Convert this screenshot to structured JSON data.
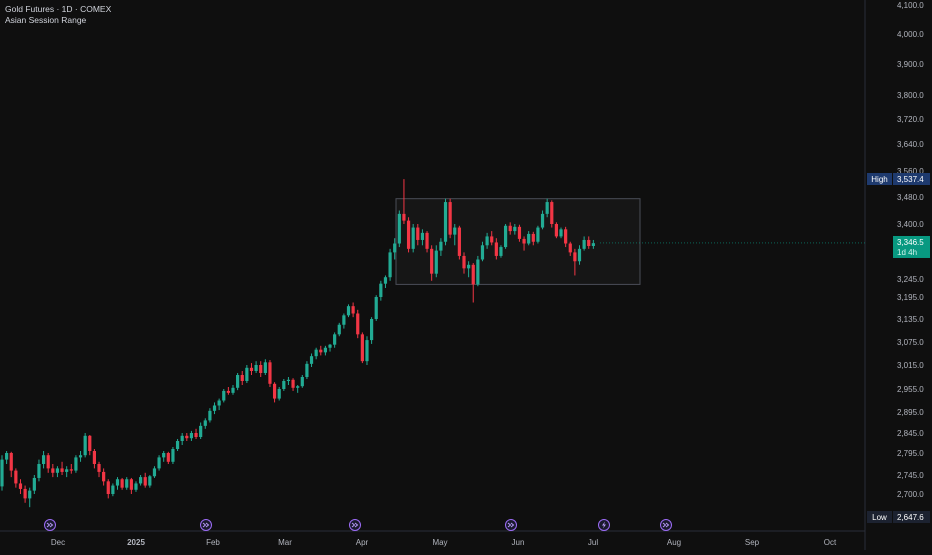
{
  "header": {
    "title": "Gold Futures · 1D · COMEX",
    "subtitle": "Asian Session Range"
  },
  "chart_data": {
    "type": "candlestick",
    "title": "Gold Futures · 1D · COMEX",
    "annotation": "Asian Session Range",
    "x_tick_labels": [
      "Dec",
      "2025",
      "Feb",
      "Mar",
      "Apr",
      "May",
      "Jun",
      "Jul",
      "Aug",
      "Sep",
      "Oct"
    ],
    "y_tick_labels": [
      "4,100.0",
      "4,000.0",
      "3,900.0",
      "3,800.0",
      "3,720.0",
      "3,640.0",
      "3,560.0",
      "3,480.0",
      "3,400.0",
      "3,245.0",
      "3,195.0",
      "3,135.0",
      "3,075.0",
      "3,015.0",
      "2,955.0",
      "2,895.0",
      "2,845.0",
      "2,795.0",
      "2,745.0",
      "2,700.0",
      "2,647.6"
    ],
    "ylim": [
      2600,
      4120
    ],
    "range_box": {
      "label": "Asian Session Range",
      "y_low": 3230,
      "y_high": 3475,
      "x_start": "2025-04-09",
      "x_end": "2025-07-07"
    },
    "markers": {
      "high": {
        "label": "High",
        "value": "3,537.4"
      },
      "low": {
        "label": "Low",
        "value": "2,647.6"
      },
      "last": {
        "value": "3,346.5",
        "countdown": "1d 4h"
      }
    },
    "event_icons": [
      "event-next-icon",
      "event-next-icon",
      "event-next-icon",
      "event-next-icon",
      "lightning-icon",
      "event-next-icon"
    ],
    "series": [
      {
        "values": [
          [
            2718,
            2790,
            2708,
            2780
          ],
          [
            2780,
            2800,
            2770,
            2795
          ],
          [
            2795,
            2798,
            2740,
            2755
          ],
          [
            2755,
            2760,
            2715,
            2725
          ],
          [
            2725,
            2735,
            2700,
            2712
          ],
          [
            2712,
            2720,
            2680,
            2690
          ],
          [
            2690,
            2715,
            2670,
            2708
          ],
          [
            2708,
            2745,
            2700,
            2738
          ],
          [
            2738,
            2780,
            2730,
            2770
          ],
          [
            2770,
            2800,
            2760,
            2790
          ],
          [
            2790,
            2795,
            2750,
            2760
          ],
          [
            2760,
            2770,
            2740,
            2750
          ],
          [
            2750,
            2765,
            2740,
            2760
          ],
          [
            2760,
            2775,
            2745,
            2752
          ],
          [
            2752,
            2765,
            2740,
            2758
          ],
          [
            2758,
            2770,
            2748,
            2755
          ],
          [
            2755,
            2790,
            2750,
            2785
          ],
          [
            2785,
            2800,
            2775,
            2790
          ],
          [
            2790,
            2845,
            2785,
            2838
          ],
          [
            2838,
            2840,
            2790,
            2800
          ],
          [
            2800,
            2805,
            2760,
            2770
          ],
          [
            2770,
            2775,
            2740,
            2752
          ],
          [
            2752,
            2760,
            2720,
            2730
          ],
          [
            2730,
            2735,
            2690,
            2700
          ],
          [
            2700,
            2725,
            2695,
            2720
          ],
          [
            2720,
            2740,
            2710,
            2735
          ],
          [
            2735,
            2738,
            2710,
            2715
          ],
          [
            2715,
            2740,
            2710,
            2735
          ],
          [
            2735,
            2738,
            2700,
            2710
          ],
          [
            2710,
            2730,
            2705,
            2725
          ],
          [
            2725,
            2745,
            2720,
            2740
          ],
          [
            2740,
            2750,
            2715,
            2720
          ],
          [
            2720,
            2745,
            2715,
            2742
          ],
          [
            2742,
            2765,
            2738,
            2760
          ],
          [
            2760,
            2790,
            2755,
            2785
          ],
          [
            2785,
            2800,
            2775,
            2795
          ],
          [
            2795,
            2798,
            2770,
            2775
          ],
          [
            2775,
            2810,
            2770,
            2805
          ],
          [
            2805,
            2830,
            2800,
            2825
          ],
          [
            2825,
            2845,
            2815,
            2838
          ],
          [
            2838,
            2845,
            2825,
            2832
          ],
          [
            2832,
            2850,
            2825,
            2845
          ],
          [
            2845,
            2855,
            2830,
            2835
          ],
          [
            2835,
            2870,
            2830,
            2862
          ],
          [
            2862,
            2880,
            2855,
            2875
          ],
          [
            2875,
            2905,
            2870,
            2898
          ],
          [
            2898,
            2920,
            2890,
            2912
          ],
          [
            2912,
            2930,
            2900,
            2925
          ],
          [
            2925,
            2955,
            2920,
            2950
          ],
          [
            2950,
            2960,
            2940,
            2945
          ],
          [
            2945,
            2965,
            2940,
            2958
          ],
          [
            2958,
            2995,
            2952,
            2990
          ],
          [
            2990,
            3000,
            2965,
            2975
          ],
          [
            2975,
            3015,
            2970,
            3008
          ],
          [
            3008,
            3020,
            2990,
            3000
          ],
          [
            3000,
            3025,
            2995,
            3015
          ],
          [
            3015,
            3025,
            2985,
            2995
          ],
          [
            2995,
            3030,
            2990,
            3022
          ],
          [
            3022,
            3028,
            2960,
            2968
          ],
          [
            2968,
            2972,
            2920,
            2930
          ],
          [
            2930,
            2960,
            2925,
            2955
          ],
          [
            2955,
            2980,
            2950,
            2975
          ],
          [
            2975,
            2985,
            2965,
            2978
          ],
          [
            2978,
            2982,
            2950,
            2958
          ],
          [
            2958,
            2965,
            2945,
            2962
          ],
          [
            2962,
            2990,
            2958,
            2985
          ],
          [
            2985,
            3025,
            2980,
            3018
          ],
          [
            3018,
            3045,
            3010,
            3038
          ],
          [
            3038,
            3060,
            3030,
            3055
          ],
          [
            3055,
            3065,
            3040,
            3048
          ],
          [
            3048,
            3065,
            3040,
            3060
          ],
          [
            3060,
            3070,
            3050,
            3068
          ],
          [
            3068,
            3100,
            3060,
            3095
          ],
          [
            3095,
            3125,
            3090,
            3120
          ],
          [
            3120,
            3150,
            3110,
            3145
          ],
          [
            3145,
            3175,
            3140,
            3170
          ],
          [
            3170,
            3180,
            3140,
            3150
          ],
          [
            3150,
            3160,
            3085,
            3095
          ],
          [
            3095,
            3100,
            3020,
            3025
          ],
          [
            3025,
            3090,
            3015,
            3080
          ],
          [
            3080,
            3140,
            3070,
            3135
          ],
          [
            3135,
            3200,
            3130,
            3195
          ],
          [
            3195,
            3240,
            3185,
            3232
          ],
          [
            3232,
            3255,
            3220,
            3250
          ],
          [
            3250,
            3330,
            3240,
            3320
          ],
          [
            3320,
            3360,
            3300,
            3345
          ],
          [
            3345,
            3440,
            3335,
            3430
          ],
          [
            3430,
            3537,
            3400,
            3410
          ],
          [
            3410,
            3420,
            3320,
            3330
          ],
          [
            3330,
            3400,
            3320,
            3390
          ],
          [
            3390,
            3400,
            3340,
            3355
          ],
          [
            3355,
            3385,
            3340,
            3375
          ],
          [
            3375,
            3380,
            3320,
            3330
          ],
          [
            3330,
            3340,
            3240,
            3260
          ],
          [
            3260,
            3340,
            3250,
            3325
          ],
          [
            3325,
            3360,
            3310,
            3350
          ],
          [
            3350,
            3475,
            3340,
            3465
          ],
          [
            3465,
            3475,
            3360,
            3370
          ],
          [
            3370,
            3400,
            3340,
            3390
          ],
          [
            3390,
            3395,
            3300,
            3310
          ],
          [
            3310,
            3320,
            3260,
            3275
          ],
          [
            3275,
            3295,
            3250,
            3285
          ],
          [
            3285,
            3290,
            3180,
            3230
          ],
          [
            3230,
            3310,
            3225,
            3300
          ],
          [
            3300,
            3350,
            3295,
            3340
          ],
          [
            3340,
            3375,
            3330,
            3365
          ],
          [
            3365,
            3380,
            3340,
            3348
          ],
          [
            3348,
            3360,
            3300,
            3310
          ],
          [
            3310,
            3340,
            3305,
            3335
          ],
          [
            3335,
            3400,
            3330,
            3395
          ],
          [
            3395,
            3405,
            3370,
            3380
          ],
          [
            3380,
            3400,
            3370,
            3392
          ],
          [
            3392,
            3398,
            3350,
            3358
          ],
          [
            3358,
            3365,
            3325,
            3345
          ],
          [
            3345,
            3380,
            3340,
            3372
          ],
          [
            3372,
            3378,
            3340,
            3350
          ],
          [
            3350,
            3395,
            3345,
            3390
          ],
          [
            3390,
            3440,
            3385,
            3430
          ],
          [
            3430,
            3475,
            3420,
            3465
          ],
          [
            3465,
            3470,
            3390,
            3400
          ],
          [
            3400,
            3405,
            3360,
            3365
          ],
          [
            3365,
            3390,
            3360,
            3385
          ],
          [
            3385,
            3392,
            3335,
            3345
          ],
          [
            3345,
            3350,
            3310,
            3320
          ],
          [
            3320,
            3330,
            3255,
            3295
          ],
          [
            3295,
            3340,
            3285,
            3330
          ],
          [
            3330,
            3365,
            3325,
            3355
          ],
          [
            3355,
            3365,
            3330,
            3338
          ],
          [
            3338,
            3355,
            3330,
            3346
          ]
        ]
      }
    ]
  }
}
